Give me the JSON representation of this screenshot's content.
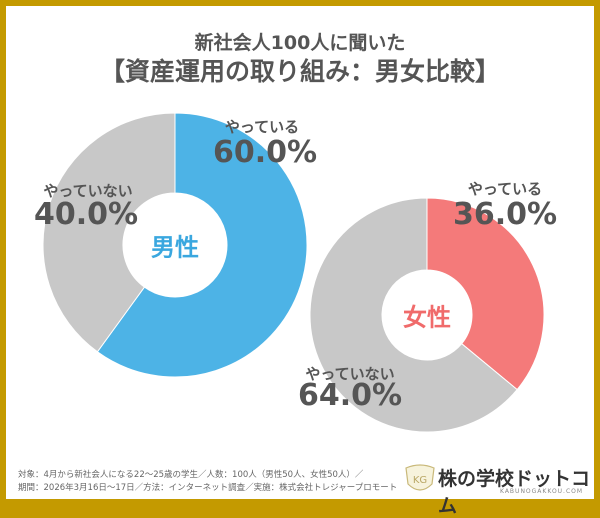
{
  "title": {
    "line1": "新社会人100人に聞いた",
    "line2": "【資産運用の取り組み：男女比較】"
  },
  "chart_data": [
    {
      "type": "pie",
      "center_label": "男性",
      "categories": [
        "やっている",
        "やっていない"
      ],
      "values": [
        60.0,
        40.0
      ],
      "value_labels": [
        "60.0%",
        "40.0%"
      ],
      "colors": [
        "#4db3e6",
        "#c8c8c8"
      ],
      "center_color": "#3aa7df"
    },
    {
      "type": "pie",
      "center_label": "女性",
      "categories": [
        "やっている",
        "やっていない"
      ],
      "values": [
        36.0,
        64.0
      ],
      "value_labels": [
        "36.0%",
        "64.0%"
      ],
      "colors": [
        "#f47a7a",
        "#c8c8c8"
      ],
      "center_color": "#f06b6b"
    }
  ],
  "footer": {
    "line1": "対象：4月から新社会人になる22〜25歳の学生／人数：100人（男性50人、女性50人）／",
    "line2": "期間：2026年3月16日〜17日／方法：インターネット調査／実施：株式会社トレジャープロモート"
  },
  "logo": {
    "mark": "KG",
    "name": "株の学校ドットコム",
    "sub": "KABUNOGAKKOU.COM"
  },
  "colors": {
    "border": "#c49a00",
    "text": "#555555"
  }
}
